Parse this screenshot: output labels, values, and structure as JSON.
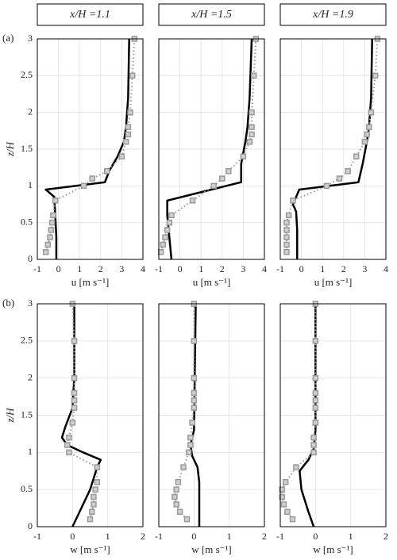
{
  "chart_data": [
    {
      "type": "line",
      "title": "x/H =1.1",
      "panel_label": "(a)",
      "xlabel": "u [m s⁻¹]",
      "ylabel": "z/H",
      "show_ytick_labels": true,
      "xlim": [
        -1,
        4
      ],
      "xticks": [
        -1,
        0,
        1,
        2,
        3,
        4
      ],
      "ylim": [
        0,
        3
      ],
      "yticks": [
        0,
        0.5,
        1,
        1.5,
        2,
        2.5,
        3
      ],
      "grid": true,
      "series": [
        {
          "color": "#000000",
          "style": "solid",
          "x": [
            -0.1,
            -0.1,
            -0.15,
            -0.2,
            -0.6,
            2.2,
            2.4,
            2.8,
            3.1,
            3.2,
            3.3,
            3.35
          ],
          "y": [
            0,
            0.3,
            0.6,
            0.85,
            0.95,
            1.05,
            1.2,
            1.4,
            1.6,
            1.8,
            2.2,
            3
          ]
        },
        {
          "color": "#999999",
          "style": "dotted-square",
          "x": [
            -0.6,
            -0.5,
            -0.4,
            -0.35,
            -0.3,
            -0.25,
            -0.15,
            1.2,
            1.6,
            2.3,
            3.0,
            3.2,
            3.3,
            3.3,
            3.4,
            3.5,
            3.6
          ],
          "y": [
            0.1,
            0.2,
            0.3,
            0.4,
            0.5,
            0.6,
            0.8,
            1.0,
            1.1,
            1.2,
            1.4,
            1.6,
            1.7,
            1.8,
            2.0,
            2.5,
            3.0
          ]
        }
      ]
    },
    {
      "type": "line",
      "title": "x/H =1.5",
      "xlabel": "u [m s⁻¹]",
      "show_ytick_labels": false,
      "xlim": [
        -1,
        4
      ],
      "xticks": [
        -1,
        0,
        1,
        2,
        3,
        4
      ],
      "ylim": [
        0,
        3
      ],
      "yticks": [
        0,
        0.5,
        1,
        1.5,
        2,
        2.5,
        3
      ],
      "grid": true,
      "series": [
        {
          "color": "#000000",
          "style": "solid",
          "x": [
            -0.4,
            -0.5,
            -0.6,
            -0.6,
            2.9,
            2.9,
            3.1,
            3.2,
            3.3,
            3.4
          ],
          "y": [
            0,
            0.3,
            0.6,
            0.8,
            1.05,
            1.3,
            1.6,
            1.8,
            2.2,
            3
          ]
        },
        {
          "color": "#999999",
          "style": "dotted-square",
          "x": [
            -0.9,
            -0.8,
            -0.7,
            -0.6,
            -0.5,
            -0.4,
            0.6,
            1.6,
            2.0,
            2.3,
            3.0,
            3.3,
            3.4,
            3.4,
            3.4,
            3.5,
            3.6
          ],
          "y": [
            0.1,
            0.2,
            0.3,
            0.4,
            0.5,
            0.6,
            0.8,
            1.0,
            1.1,
            1.2,
            1.4,
            1.6,
            1.7,
            1.8,
            2.0,
            2.5,
            3.0
          ]
        }
      ]
    },
    {
      "type": "line",
      "title": "x/H =1.9",
      "xlabel": "u [m s⁻¹]",
      "show_ytick_labels": false,
      "xlim": [
        -1,
        4
      ],
      "xticks": [
        -1,
        0,
        1,
        2,
        3,
        4
      ],
      "ylim": [
        0,
        3
      ],
      "yticks": [
        0,
        0.5,
        1,
        1.5,
        2,
        2.5,
        3
      ],
      "grid": true,
      "series": [
        {
          "color": "#000000",
          "style": "solid",
          "x": [
            -0.2,
            -0.2,
            -0.25,
            -0.4,
            -0.1,
            2.7,
            2.9,
            3.1,
            3.2,
            3.3,
            3.35
          ],
          "y": [
            0,
            0.4,
            0.65,
            0.75,
            0.95,
            1.05,
            1.3,
            1.6,
            1.8,
            2.2,
            3
          ]
        },
        {
          "color": "#999999",
          "style": "dotted-square",
          "x": [
            -0.7,
            -0.7,
            -0.7,
            -0.7,
            -0.7,
            -0.6,
            -0.4,
            1.2,
            1.8,
            2.2,
            2.6,
            3.0,
            3.1,
            3.2,
            3.3,
            3.5,
            3.6
          ],
          "y": [
            0.1,
            0.2,
            0.3,
            0.4,
            0.5,
            0.6,
            0.8,
            1.0,
            1.1,
            1.2,
            1.4,
            1.6,
            1.7,
            1.8,
            2.0,
            2.5,
            3.0
          ]
        }
      ]
    },
    {
      "type": "line",
      "panel_label": "(b)",
      "xlabel": "w [m s⁻¹]",
      "ylabel": "z/H",
      "show_ytick_labels": true,
      "xlim": [
        -1,
        2
      ],
      "xticks": [
        -1,
        0,
        1,
        2
      ],
      "ylim": [
        0,
        3
      ],
      "yticks": [
        0,
        0.5,
        1,
        1.5,
        2,
        2.5,
        3
      ],
      "grid": true,
      "series": [
        {
          "color": "#000000",
          "style": "solid",
          "x": [
            0,
            0.2,
            0.5,
            0.7,
            0.8,
            0.3,
            -0.15,
            -0.3,
            -0.2,
            0,
            0.05,
            0.05
          ],
          "y": [
            0,
            0.2,
            0.5,
            0.8,
            0.9,
            1.0,
            1.1,
            1.2,
            1.35,
            1.6,
            2,
            3
          ]
        },
        {
          "color": "#999999",
          "style": "dotted-square",
          "x": [
            0.5,
            0.55,
            0.6,
            0.6,
            0.65,
            0.7,
            0.7,
            -0.1,
            -0.15,
            -0.1,
            0.0,
            0.05,
            0.05,
            0.05,
            0.05,
            0.05,
            0.0
          ],
          "y": [
            0.1,
            0.2,
            0.3,
            0.4,
            0.5,
            0.6,
            0.8,
            1.0,
            1.1,
            1.2,
            1.4,
            1.6,
            1.7,
            1.8,
            2.0,
            2.5,
            3.0
          ]
        }
      ]
    },
    {
      "type": "line",
      "xlabel": "w [m s⁻¹]",
      "show_ytick_labels": false,
      "xlim": [
        -1,
        2
      ],
      "xticks": [
        -1,
        0,
        1,
        2
      ],
      "ylim": [
        0,
        3
      ],
      "yticks": [
        0,
        0.5,
        1,
        1.5,
        2,
        2.5,
        3
      ],
      "grid": true,
      "series": [
        {
          "color": "#000000",
          "style": "solid",
          "x": [
            0.15,
            0.15,
            0.15,
            0.1,
            -0.05,
            -0.1,
            0,
            0.02,
            0.05
          ],
          "y": [
            0,
            0.3,
            0.6,
            0.8,
            0.95,
            1.1,
            1.3,
            2,
            3
          ]
        },
        {
          "color": "#999999",
          "style": "dotted-square",
          "x": [
            -0.2,
            -0.4,
            -0.5,
            -0.55,
            -0.5,
            -0.45,
            -0.3,
            -0.15,
            -0.1,
            -0.1,
            -0.05,
            0,
            0,
            0,
            0,
            0,
            0
          ],
          "y": [
            0.1,
            0.2,
            0.3,
            0.4,
            0.5,
            0.6,
            0.8,
            1.0,
            1.1,
            1.2,
            1.4,
            1.6,
            1.7,
            1.8,
            2.0,
            2.5,
            3.0
          ]
        }
      ]
    },
    {
      "type": "line",
      "xlabel": "w [m s⁻¹]",
      "show_ytick_labels": false,
      "xlim": [
        -1,
        2
      ],
      "xticks": [
        -1,
        0,
        1,
        2
      ],
      "ylim": [
        0,
        3
      ],
      "yticks": [
        0,
        0.5,
        1,
        1.5,
        2,
        2.5,
        3
      ],
      "grid": true,
      "series": [
        {
          "color": "#000000",
          "style": "solid",
          "x": [
            -0.05,
            -0.2,
            -0.4,
            -0.45,
            -0.2,
            -0.05,
            0,
            0,
            0
          ],
          "y": [
            0,
            0.2,
            0.5,
            0.75,
            0.9,
            1.05,
            1.3,
            2,
            3
          ]
        },
        {
          "color": "#999999",
          "style": "dotted-square",
          "x": [
            -0.65,
            -0.8,
            -0.9,
            -0.95,
            -0.95,
            -0.85,
            -0.55,
            -0.05,
            -0.05,
            -0.05,
            0,
            0,
            0,
            0,
            0,
            0,
            0
          ],
          "y": [
            0.1,
            0.2,
            0.3,
            0.4,
            0.5,
            0.6,
            0.8,
            1.0,
            1.1,
            1.2,
            1.4,
            1.6,
            1.7,
            1.8,
            2.0,
            2.5,
            3.0
          ]
        }
      ]
    }
  ]
}
